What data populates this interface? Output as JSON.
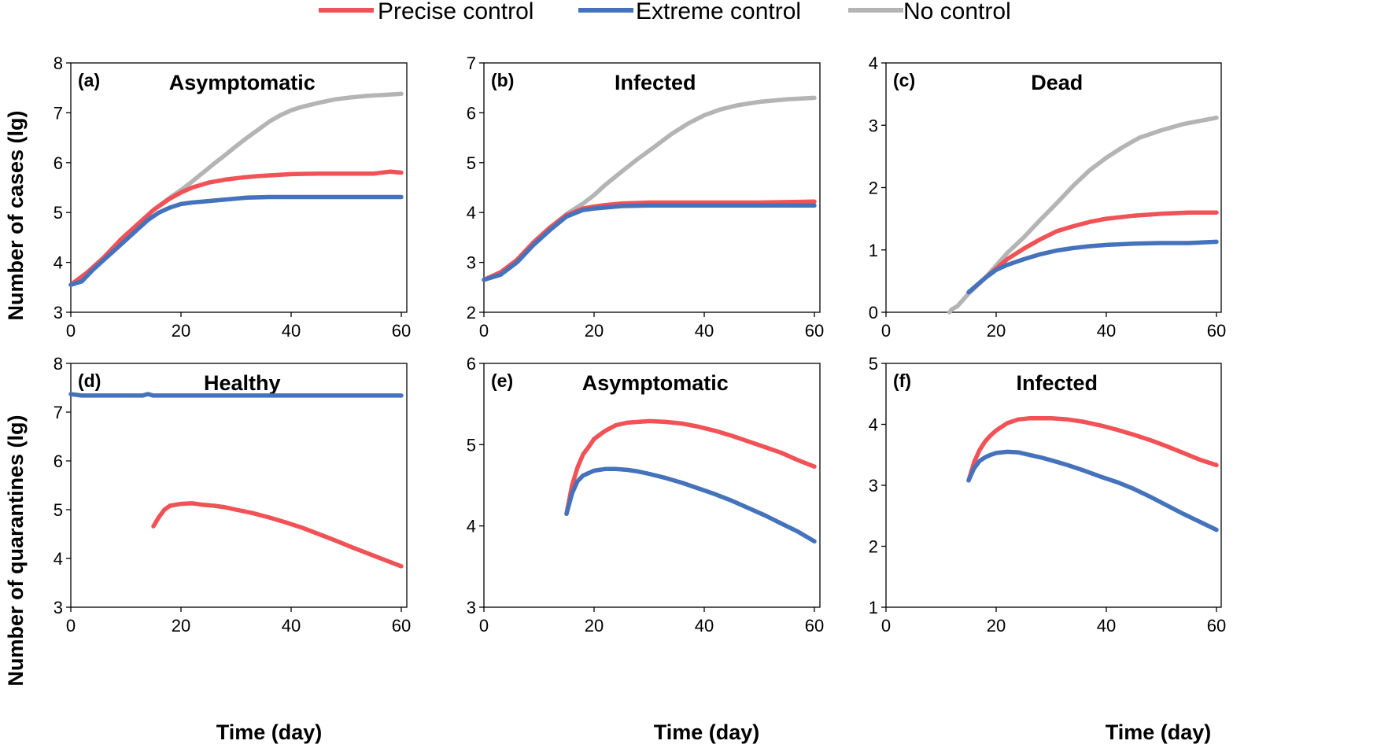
{
  "colors": {
    "precise": "#f05256",
    "extreme": "#4473bc",
    "none": "#b4b4b4"
  },
  "legend": [
    {
      "key": "precise",
      "label": "Precise control"
    },
    {
      "key": "extreme",
      "label": "Extreme control"
    },
    {
      "key": "none",
      "label": "No control"
    }
  ],
  "axis_labels": {
    "y_top": "Number of cases (lg)",
    "y_bottom": "Number of quarantines (lg)",
    "x": "Time (day)"
  },
  "chart_data": [
    {
      "type": "line",
      "panel": "(a)",
      "title": "Asymptomatic",
      "xlim": [
        0,
        60
      ],
      "ylim": [
        3,
        8
      ],
      "xticks": [
        0,
        20,
        40,
        60
      ],
      "yticks": [
        3,
        4,
        5,
        6,
        7,
        8
      ],
      "series": [
        {
          "key": "none",
          "name": "No control",
          "x": [
            0,
            3,
            6,
            9,
            12,
            15,
            18,
            20,
            22,
            24,
            26,
            28,
            30,
            32,
            34,
            36,
            38,
            40,
            42,
            45,
            48,
            51,
            54,
            57,
            60
          ],
          "y": [
            3.55,
            3.8,
            4.1,
            4.45,
            4.75,
            5.05,
            5.3,
            5.45,
            5.62,
            5.8,
            5.98,
            6.15,
            6.33,
            6.5,
            6.66,
            6.82,
            6.95,
            7.05,
            7.12,
            7.2,
            7.27,
            7.31,
            7.34,
            7.36,
            7.38
          ]
        },
        {
          "key": "precise",
          "name": "Precise control",
          "x": [
            0,
            3,
            6,
            9,
            12,
            15,
            18,
            20,
            22,
            25,
            28,
            31,
            34,
            37,
            40,
            45,
            50,
            55,
            58,
            60
          ],
          "y": [
            3.55,
            3.8,
            4.1,
            4.45,
            4.75,
            5.05,
            5.28,
            5.4,
            5.5,
            5.6,
            5.66,
            5.7,
            5.73,
            5.75,
            5.77,
            5.78,
            5.78,
            5.78,
            5.82,
            5.8
          ]
        },
        {
          "key": "extreme",
          "name": "Extreme control",
          "x": [
            0,
            2,
            4,
            6,
            8,
            10,
            12,
            14,
            16,
            18,
            20,
            22,
            25,
            28,
            32,
            36,
            40,
            45,
            50,
            55,
            60
          ],
          "y": [
            3.55,
            3.62,
            3.85,
            4.05,
            4.25,
            4.45,
            4.65,
            4.85,
            5.0,
            5.1,
            5.17,
            5.2,
            5.23,
            5.26,
            5.3,
            5.31,
            5.31,
            5.31,
            5.31,
            5.31,
            5.31
          ]
        }
      ]
    },
    {
      "type": "line",
      "panel": "(b)",
      "title": "Infected",
      "xlim": [
        0,
        60
      ],
      "ylim": [
        2,
        7
      ],
      "xticks": [
        0,
        20,
        40,
        60
      ],
      "yticks": [
        2,
        3,
        4,
        5,
        6,
        7
      ],
      "series": [
        {
          "key": "none",
          "name": "No control",
          "x": [
            0,
            3,
            6,
            9,
            12,
            15,
            18,
            20,
            22,
            25,
            28,
            31,
            34,
            37,
            40,
            43,
            46,
            50,
            55,
            60
          ],
          "y": [
            2.65,
            2.8,
            3.05,
            3.4,
            3.7,
            3.97,
            4.18,
            4.35,
            4.55,
            4.82,
            5.08,
            5.32,
            5.57,
            5.78,
            5.95,
            6.07,
            6.15,
            6.22,
            6.27,
            6.3
          ]
        },
        {
          "key": "precise",
          "name": "Precise control",
          "x": [
            0,
            3,
            6,
            9,
            12,
            15,
            18,
            20,
            22,
            25,
            30,
            40,
            50,
            60
          ],
          "y": [
            2.65,
            2.8,
            3.05,
            3.4,
            3.7,
            3.95,
            4.08,
            4.12,
            4.15,
            4.18,
            4.2,
            4.2,
            4.2,
            4.22
          ]
        },
        {
          "key": "extreme",
          "name": "Extreme control",
          "x": [
            0,
            3,
            6,
            9,
            12,
            15,
            18,
            20,
            22,
            25,
            30,
            40,
            50,
            60
          ],
          "y": [
            2.65,
            2.75,
            3.0,
            3.35,
            3.65,
            3.92,
            4.05,
            4.08,
            4.1,
            4.13,
            4.14,
            4.14,
            4.14,
            4.14
          ]
        }
      ]
    },
    {
      "type": "line",
      "panel": "(c)",
      "title": "Dead",
      "xlim": [
        0,
        60
      ],
      "ylim": [
        0,
        4
      ],
      "xticks": [
        0,
        20,
        40,
        60
      ],
      "yticks": [
        0,
        1,
        2,
        3,
        4
      ],
      "series": [
        {
          "key": "none",
          "name": "No control",
          "x": [
            11.5,
            12,
            13,
            15,
            18,
            20,
            22,
            25,
            28,
            31,
            34,
            37,
            40,
            43,
            46,
            50,
            54,
            57,
            60
          ],
          "y": [
            0.0,
            0.05,
            0.1,
            0.3,
            0.55,
            0.75,
            0.95,
            1.2,
            1.48,
            1.75,
            2.03,
            2.28,
            2.48,
            2.65,
            2.8,
            2.92,
            3.02,
            3.07,
            3.12
          ]
        },
        {
          "key": "precise",
          "name": "Precise control",
          "x": [
            15,
            18,
            20,
            22,
            25,
            28,
            31,
            34,
            37,
            40,
            45,
            50,
            55,
            60
          ],
          "y": [
            0.32,
            0.55,
            0.7,
            0.85,
            1.02,
            1.17,
            1.3,
            1.38,
            1.45,
            1.5,
            1.55,
            1.58,
            1.6,
            1.6
          ]
        },
        {
          "key": "extreme",
          "name": "Extreme control",
          "x": [
            15,
            18,
            20,
            22,
            25,
            28,
            31,
            34,
            37,
            40,
            45,
            50,
            55,
            60
          ],
          "y": [
            0.32,
            0.55,
            0.68,
            0.76,
            0.85,
            0.93,
            0.99,
            1.03,
            1.06,
            1.08,
            1.1,
            1.11,
            1.11,
            1.13
          ]
        }
      ]
    },
    {
      "type": "line",
      "panel": "(d)",
      "title": "Healthy",
      "xlim": [
        0,
        60
      ],
      "ylim": [
        3,
        8
      ],
      "xticks": [
        0,
        20,
        40,
        60
      ],
      "yticks": [
        3,
        4,
        5,
        6,
        7,
        8
      ],
      "series": [
        {
          "key": "extreme",
          "name": "Extreme control",
          "x": [
            0,
            2,
            5,
            10,
            13,
            14,
            15,
            20,
            30,
            40,
            50,
            60
          ],
          "y": [
            7.37,
            7.34,
            7.34,
            7.34,
            7.34,
            7.37,
            7.34,
            7.34,
            7.34,
            7.34,
            7.34,
            7.34
          ]
        },
        {
          "key": "precise",
          "name": "Precise control",
          "x": [
            15,
            16,
            17,
            18,
            20,
            22,
            24,
            26,
            28,
            30,
            33,
            36,
            39,
            42,
            45,
            48,
            51,
            54,
            57,
            60
          ],
          "y": [
            4.66,
            4.85,
            5.0,
            5.08,
            5.12,
            5.13,
            5.1,
            5.08,
            5.05,
            5.0,
            4.93,
            4.84,
            4.74,
            4.63,
            4.5,
            4.37,
            4.23,
            4.1,
            3.97,
            3.84
          ]
        }
      ]
    },
    {
      "type": "line",
      "panel": "(e)",
      "title": "Asymptomatic",
      "xlim": [
        0,
        60
      ],
      "ylim": [
        3,
        6
      ],
      "xticks": [
        0,
        20,
        40,
        60
      ],
      "yticks": [
        3,
        4,
        5,
        6
      ],
      "series": [
        {
          "key": "precise",
          "name": "Precise control",
          "x": [
            15,
            16,
            17,
            18,
            19,
            20,
            22,
            24,
            26,
            28,
            30,
            33,
            36,
            39,
            42,
            45,
            48,
            51,
            54,
            57,
            60
          ],
          "y": [
            4.15,
            4.5,
            4.72,
            4.88,
            4.97,
            5.07,
            5.17,
            5.24,
            5.27,
            5.28,
            5.29,
            5.28,
            5.26,
            5.22,
            5.17,
            5.11,
            5.04,
            4.97,
            4.9,
            4.81,
            4.73
          ]
        },
        {
          "key": "extreme",
          "name": "Extreme control",
          "x": [
            15,
            16,
            17,
            18,
            19,
            20,
            22,
            24,
            26,
            28,
            30,
            33,
            36,
            39,
            42,
            45,
            48,
            51,
            54,
            57,
            60
          ],
          "y": [
            4.15,
            4.4,
            4.55,
            4.62,
            4.65,
            4.68,
            4.7,
            4.7,
            4.69,
            4.67,
            4.64,
            4.59,
            4.53,
            4.46,
            4.39,
            4.31,
            4.22,
            4.13,
            4.03,
            3.93,
            3.81
          ]
        }
      ]
    },
    {
      "type": "line",
      "panel": "(f)",
      "title": "Infected",
      "xlim": [
        0,
        60
      ],
      "ylim": [
        1,
        5
      ],
      "xticks": [
        0,
        20,
        40,
        60
      ],
      "yticks": [
        1,
        2,
        3,
        4,
        5
      ],
      "series": [
        {
          "key": "precise",
          "name": "Precise control",
          "x": [
            15,
            16,
            17,
            18,
            19,
            20,
            22,
            24,
            26,
            28,
            30,
            33,
            36,
            39,
            42,
            45,
            48,
            51,
            54,
            57,
            60
          ],
          "y": [
            3.08,
            3.38,
            3.58,
            3.72,
            3.82,
            3.9,
            4.02,
            4.08,
            4.1,
            4.1,
            4.1,
            4.08,
            4.04,
            3.98,
            3.91,
            3.83,
            3.74,
            3.64,
            3.53,
            3.42,
            3.33
          ]
        },
        {
          "key": "extreme",
          "name": "Extreme control",
          "x": [
            15,
            16,
            17,
            18,
            19,
            20,
            22,
            24,
            26,
            28,
            30,
            33,
            36,
            39,
            42,
            45,
            48,
            51,
            54,
            57,
            60
          ],
          "y": [
            3.08,
            3.28,
            3.4,
            3.46,
            3.5,
            3.53,
            3.55,
            3.54,
            3.5,
            3.46,
            3.41,
            3.33,
            3.24,
            3.14,
            3.05,
            2.94,
            2.81,
            2.67,
            2.53,
            2.4,
            2.27
          ]
        }
      ]
    }
  ]
}
